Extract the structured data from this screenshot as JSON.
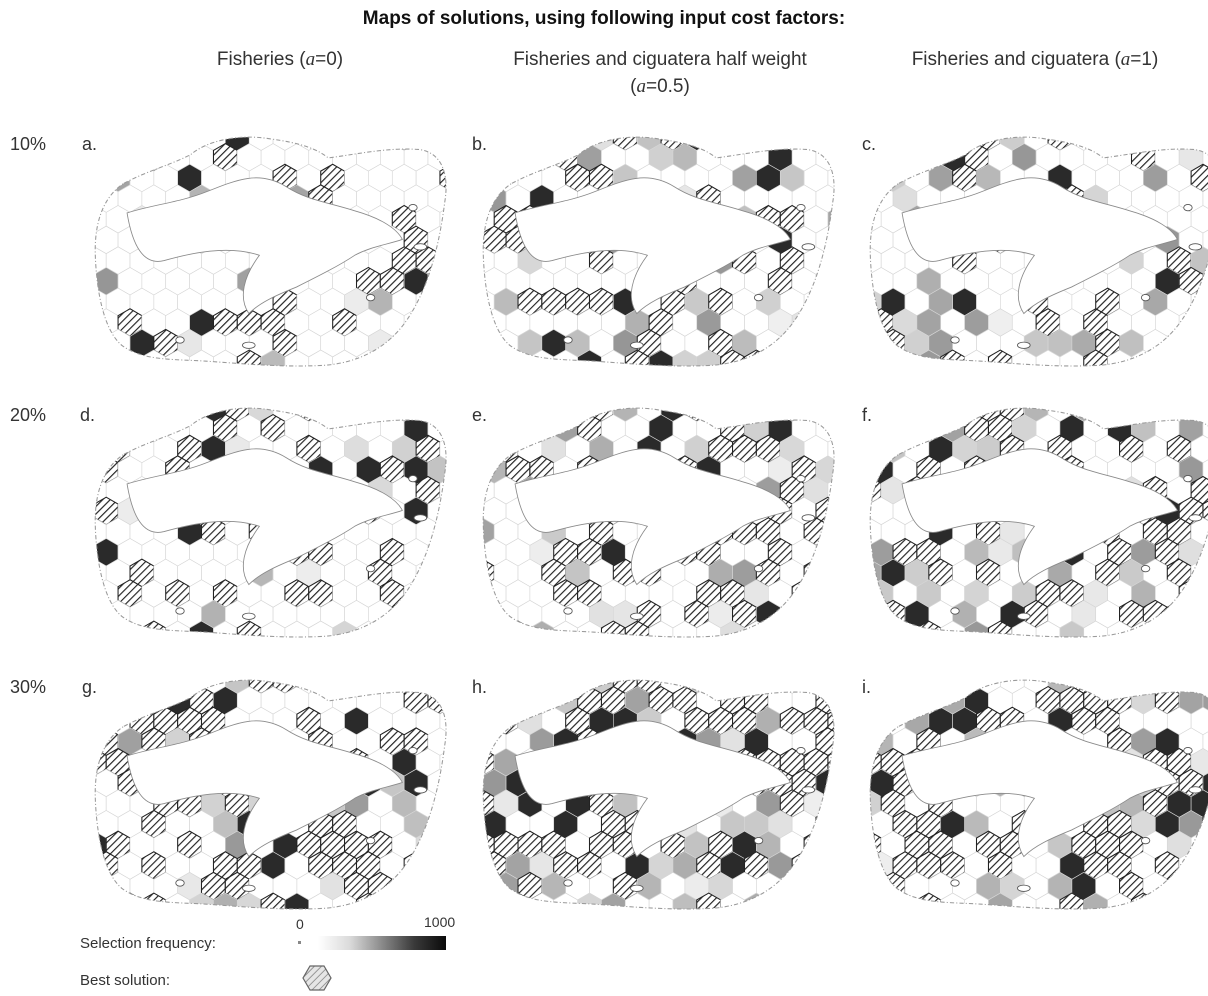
{
  "title": "Maps of solutions, using following input cost factors:",
  "columns": [
    {
      "label_pre": "Fisheries (",
      "alpha": "a",
      "label_post": "=0)"
    },
    {
      "label_pre": "Fisheries and ciguatera half weight",
      "line2_pre": "(",
      "alpha": "a",
      "label_post": "=0.5)"
    },
    {
      "label_pre": "Fisheries and ciguatera (",
      "alpha": "a",
      "label_post": "=1)"
    }
  ],
  "rows": [
    "10%",
    "20%",
    "30%"
  ],
  "panels": [
    "a.",
    "b.",
    "c.",
    "d.",
    "e.",
    "f.",
    "g.",
    "h.",
    "i."
  ],
  "legend": {
    "frequency_label": "Selection frequency:",
    "best_label": "Best solution:",
    "min": "0",
    "max": "1000"
  },
  "colors": {
    "outline": "#9a9a9a",
    "hatch": "#222222",
    "dark": "#111111"
  }
}
